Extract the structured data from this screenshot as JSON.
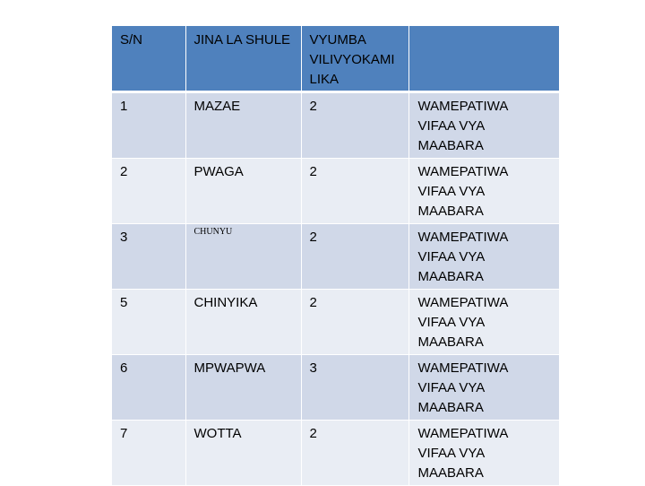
{
  "table": {
    "headers": [
      "S/N",
      "JINA LA SHULE",
      " VYUMBA\nVILIVYOKAMI\nLIKA",
      ""
    ],
    "rows": [
      {
        "sn": "1",
        "school": "MAZAE",
        "rooms": "2",
        "status": "WAMEPATIWA\nVIFAA VYA\nMAABARA"
      },
      {
        "sn": "2",
        "school": "PWAGA",
        "rooms": "2",
        "status": "WAMEPATIWA\nVIFAA VYA\nMAABARA"
      },
      {
        "sn": "3",
        "school": "CHUNYU",
        "rooms": "2",
        "status": "WAMEPATIWA\nVIFAA VYA\nMAABARA"
      },
      {
        "sn": "5",
        "school": "CHINYIKA",
        "rooms": "2",
        "status": "WAMEPATIWA\nVIFAA VYA\nMAABARA"
      },
      {
        "sn": "6",
        "school": "MPWAPWA",
        "rooms": "3",
        "status": "WAMEPATIWA\nVIFAA VYA\nMAABARA"
      },
      {
        "sn": "7",
        "school": "WOTTA",
        "rooms": "2",
        "status": "WAMEPATIWA\nVIFAA VYA\nMAABARA"
      }
    ]
  },
  "colors": {
    "header": "#4f81bd",
    "row_dark": "#d0d8e8",
    "row_light": "#e9edf4"
  }
}
